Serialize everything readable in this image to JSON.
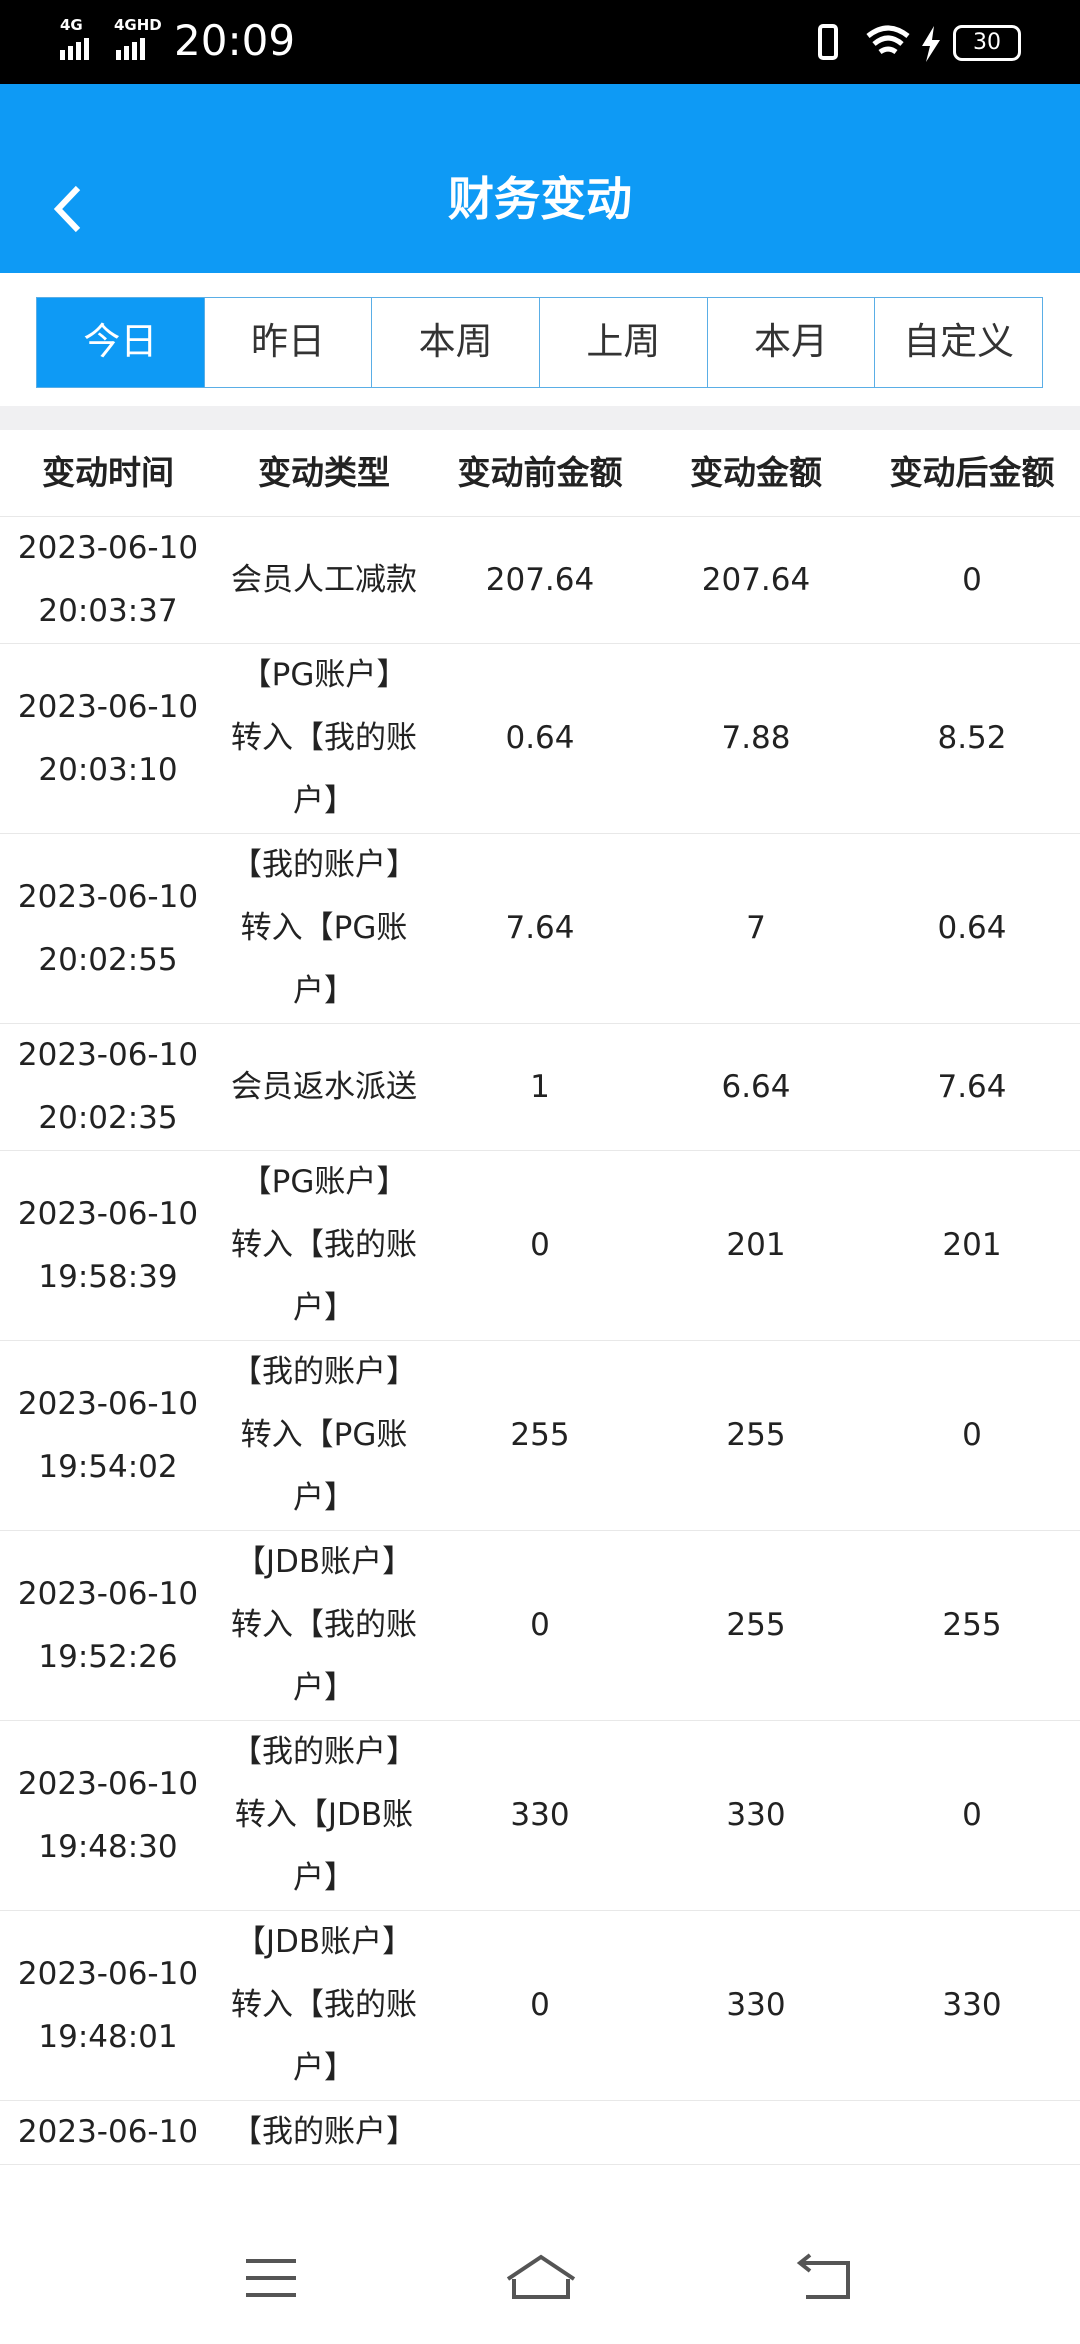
{
  "status_bar": {
    "signal_1": "4G",
    "signal_2": "4GHD",
    "time": "20:09",
    "battery": "30"
  },
  "header": {
    "title": "财务变动"
  },
  "tabs": [
    "今日",
    "昨日",
    "本周",
    "上周",
    "本月",
    "自定义"
  ],
  "table": {
    "columns": [
      "变动时间",
      "变动类型",
      "变动前金额",
      "变动金额",
      "变动后金额"
    ],
    "rows": [
      {
        "date": "2023-06-10",
        "time": "20:03:37",
        "type": "会员人工减款",
        "before": 207.64,
        "amount": 207.64,
        "after": 0
      },
      {
        "date": "2023-06-10",
        "time": "20:03:10",
        "type": "【PG账户】转入【我的账户】",
        "before": 0.64,
        "amount": 7.88,
        "after": 8.52
      },
      {
        "date": "2023-06-10",
        "time": "20:02:55",
        "type": "【我的账户】转入【PG账户】",
        "before": 7.64,
        "amount": 7,
        "after": 0.64
      },
      {
        "date": "2023-06-10",
        "time": "20:02:35",
        "type": "会员返水派送",
        "before": 1,
        "amount": 6.64,
        "after": 7.64
      },
      {
        "date": "2023-06-10",
        "time": "19:58:39",
        "type": "【PG账户】转入【我的账户】",
        "before": 0,
        "amount": 201,
        "after": 201
      },
      {
        "date": "2023-06-10",
        "time": "19:54:02",
        "type": "【我的账户】转入【PG账户】",
        "before": 255,
        "amount": 255,
        "after": 0
      },
      {
        "date": "2023-06-10",
        "time": "19:52:26",
        "type": "【JDB账户】转入【我的账户】",
        "before": 0,
        "amount": 255,
        "after": 255
      },
      {
        "date": "2023-06-10",
        "time": "19:48:30",
        "type": "【我的账户】转入【JDB账户】",
        "before": 330,
        "amount": 330,
        "after": 0
      },
      {
        "date": "2023-06-10",
        "time": "19:48:01",
        "type": "【JDB账户】转入【我的账户】",
        "before": 0,
        "amount": 330,
        "after": 330
      },
      {
        "date": "2023-06-10",
        "type": "【我的账户】"
      }
    ]
  }
}
